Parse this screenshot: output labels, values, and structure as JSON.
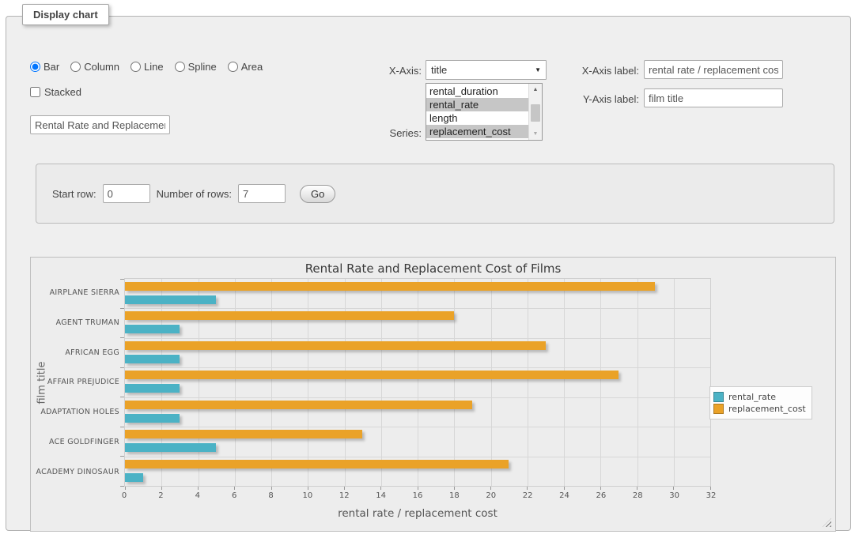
{
  "panel": {
    "legend": "Display chart"
  },
  "controls": {
    "chart_types": [
      {
        "label": "Bar",
        "selected": true
      },
      {
        "label": "Column",
        "selected": false
      },
      {
        "label": "Line",
        "selected": false
      },
      {
        "label": "Spline",
        "selected": false
      },
      {
        "label": "Area",
        "selected": false
      }
    ],
    "stacked": {
      "label": "Stacked",
      "checked": false
    },
    "title_input": {
      "value": "Rental Rate and Replacement Cost of Films"
    },
    "x_axis": {
      "label": "X-Axis:",
      "value": "title"
    },
    "series": {
      "label": "Series:",
      "options": [
        {
          "label": "rental_duration",
          "selected": false
        },
        {
          "label": "rental_rate",
          "selected": true
        },
        {
          "label": "length",
          "selected": false
        },
        {
          "label": "replacement_cost",
          "selected": true
        }
      ]
    },
    "x_axis_label": {
      "label": "X-Axis label:",
      "value": "rental rate / replacement cost"
    },
    "y_axis_label": {
      "label": "Y-Axis label:",
      "value": "film title"
    }
  },
  "rows_form": {
    "start_row_label": "Start row:",
    "start_row_value": "0",
    "num_rows_label": "Number of rows:",
    "num_rows_value": "7",
    "go_label": "Go"
  },
  "icons": {
    "select_arrow": "▼",
    "scroll_up_arrow": "▲",
    "scroll_down_arrow": "▼"
  },
  "chart_data": {
    "type": "bar",
    "orientation": "horizontal",
    "title": "Rental Rate and Replacement Cost of Films",
    "categories": [
      "AIRPLANE SIERRA",
      "AGENT TRUMAN",
      "AFRICAN EGG",
      "AFFAIR PREJUDICE",
      "ADAPTATION HOLES",
      "ACE GOLDFINGER",
      "ACADEMY DINOSAUR"
    ],
    "series": [
      {
        "name": "rental_rate",
        "color": "#4bb2c5",
        "values": [
          4.99,
          2.99,
          2.99,
          2.99,
          2.99,
          4.99,
          0.99
        ]
      },
      {
        "name": "replacement_cost",
        "color": "#eaa228",
        "values": [
          28.99,
          17.99,
          22.99,
          26.99,
          18.99,
          12.99,
          20.99
        ]
      }
    ],
    "xlabel": "rental rate / replacement cost",
    "ylabel": "film title",
    "xlim": [
      0,
      32
    ],
    "xticks": [
      0,
      2,
      4,
      6,
      8,
      10,
      12,
      14,
      16,
      18,
      20,
      22,
      24,
      26,
      28,
      30,
      32
    ],
    "grid": true,
    "legend_position": "right"
  }
}
